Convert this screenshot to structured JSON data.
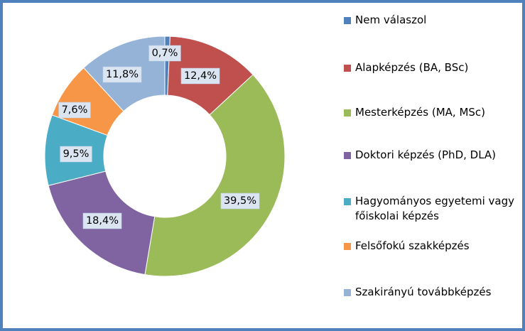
{
  "chart_data": {
    "type": "pie",
    "variant": "doughnut",
    "title": "",
    "legend_position": "right",
    "slices": [
      {
        "name": "Nem válaszol",
        "value": 0.7,
        "label": "0,7%",
        "color": "#4f81bd"
      },
      {
        "name": "Alapképzés (BA, BSc)",
        "value": 12.4,
        "label": "12,4%",
        "color": "#c0504d"
      },
      {
        "name": "Mesterképzés (MA, MSc)",
        "value": 39.5,
        "label": "39,5%",
        "color": "#9bbb59"
      },
      {
        "name": "Doktori képzés (PhD, DLA)",
        "value": 18.4,
        "label": "18,4%",
        "color": "#8064a2"
      },
      {
        "name": "Hagyományos egyetemi vagy főiskolai képzés",
        "value": 9.5,
        "label": "9,5%",
        "color": "#4bacc6"
      },
      {
        "name": "Felsőfokú szakképzés",
        "value": 7.6,
        "label": "7,6%",
        "color": "#f79646"
      },
      {
        "name": "Szakirányú továbbképzés",
        "value": 11.8,
        "label": "11,8%",
        "color": "#95b3d7"
      }
    ]
  }
}
